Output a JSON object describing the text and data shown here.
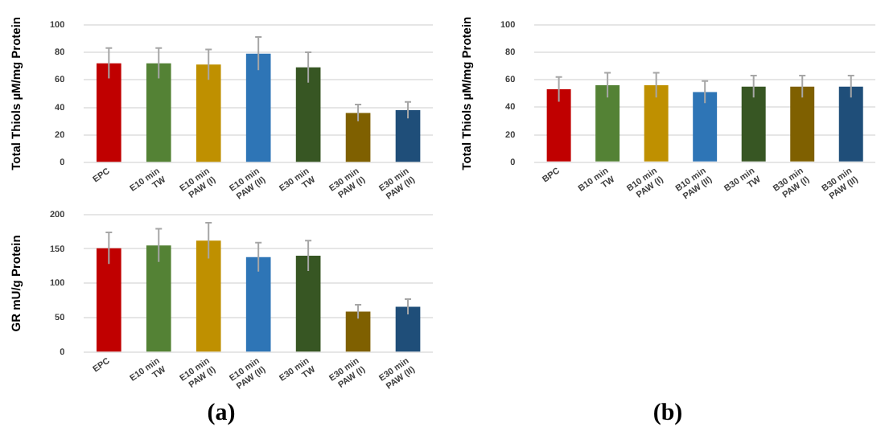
{
  "chart_data": [
    {
      "type": "bar",
      "ylabel": "Total Thiols µM/mg Protein",
      "categories": [
        "EPC",
        "E10 min TW",
        "E10 min PAW (I)",
        "E10 min PAW (II)",
        "E30 min TW",
        "E30 min PAW (I)",
        "E30 min PAW (II)"
      ],
      "values": [
        72,
        72,
        71,
        79,
        69,
        36,
        38
      ],
      "errors": [
        11,
        11,
        11,
        12,
        11,
        6,
        6
      ],
      "colors": [
        "#c00000",
        "#548235",
        "#bf9000",
        "#2e75b6",
        "#375623",
        "#7f6000",
        "#1f4e79"
      ],
      "ylim": [
        0,
        100
      ],
      "yticks": [
        0,
        20,
        40,
        60,
        80,
        100
      ],
      "grid": "y",
      "legend": false
    },
    {
      "type": "bar",
      "ylabel": "GR mU/g Protein",
      "categories": [
        "EPC",
        "E10 min TW",
        "E10 min PAW (I)",
        "E10 min PAW (II)",
        "E30 min TW",
        "E30 min PAW (I)",
        "E30 min PAW (II)"
      ],
      "values": [
        151,
        155,
        162,
        138,
        140,
        59,
        66
      ],
      "errors": [
        23,
        24,
        26,
        21,
        22,
        10,
        11
      ],
      "colors": [
        "#c00000",
        "#548235",
        "#bf9000",
        "#2e75b6",
        "#375623",
        "#7f6000",
        "#1f4e79"
      ],
      "ylim": [
        0,
        200
      ],
      "yticks": [
        0,
        50,
        100,
        150,
        200
      ],
      "grid": "y",
      "legend": false,
      "annotations": [
        "(a)"
      ]
    },
    {
      "type": "bar",
      "ylabel": "Total Thiols µM/mg Protein",
      "categories": [
        "BPC",
        "B10 min TW",
        "B10 min PAW (I)",
        "B10 min PAW (II)",
        "B30 min TW",
        "B30 min PAW (I)",
        "B30 min PAW (II)"
      ],
      "values": [
        53,
        56,
        56,
        51,
        55,
        55,
        55
      ],
      "errors": [
        9,
        9,
        9,
        8,
        8,
        8,
        8
      ],
      "colors": [
        "#c00000",
        "#548235",
        "#bf9000",
        "#2e75b6",
        "#375623",
        "#7f6000",
        "#1f4e79"
      ],
      "ylim": [
        0,
        100
      ],
      "yticks": [
        0,
        20,
        40,
        60,
        80,
        100
      ],
      "grid": "y",
      "legend": false,
      "annotations": [
        "(b)"
      ]
    }
  ]
}
